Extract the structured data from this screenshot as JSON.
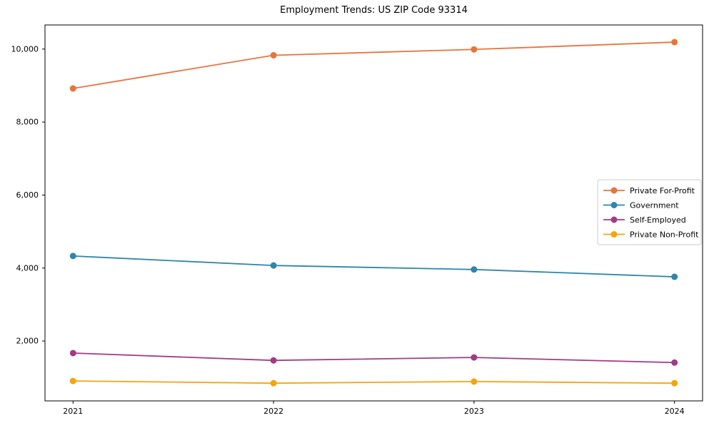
{
  "chart_data": {
    "type": "line",
    "title": "Employment Trends: US ZIP Code 93314",
    "x": [
      2021,
      2022,
      2023,
      2024
    ],
    "xtick_labels": [
      "2021",
      "2022",
      "2023",
      "2024"
    ],
    "ytick_values": [
      2000,
      4000,
      6000,
      8000,
      10000
    ],
    "ytick_labels": [
      "2,000",
      "4,000",
      "6,000",
      "8,000",
      "10,000"
    ],
    "xlim": [
      2020.86,
      2024.14
    ],
    "ylim": [
      360,
      10660
    ],
    "grid": false,
    "legend_position": "center-right",
    "xlabel": "",
    "ylabel": "",
    "series": [
      {
        "name": "Private For-Profit",
        "color": "#E8743B",
        "values": [
          8920,
          9830,
          9990,
          10190
        ]
      },
      {
        "name": "Government",
        "color": "#2E86AB",
        "values": [
          4330,
          4070,
          3960,
          3760
        ]
      },
      {
        "name": "Self-Employed",
        "color": "#A23B85",
        "values": [
          1670,
          1470,
          1550,
          1410
        ]
      },
      {
        "name": "Private Non-Profit",
        "color": "#F5A40C",
        "values": [
          905,
          845,
          890,
          845
        ]
      }
    ],
    "axis_color": "#000000",
    "legend_border_color": "#cccccc",
    "legend_bg_color": "#ffffff"
  }
}
